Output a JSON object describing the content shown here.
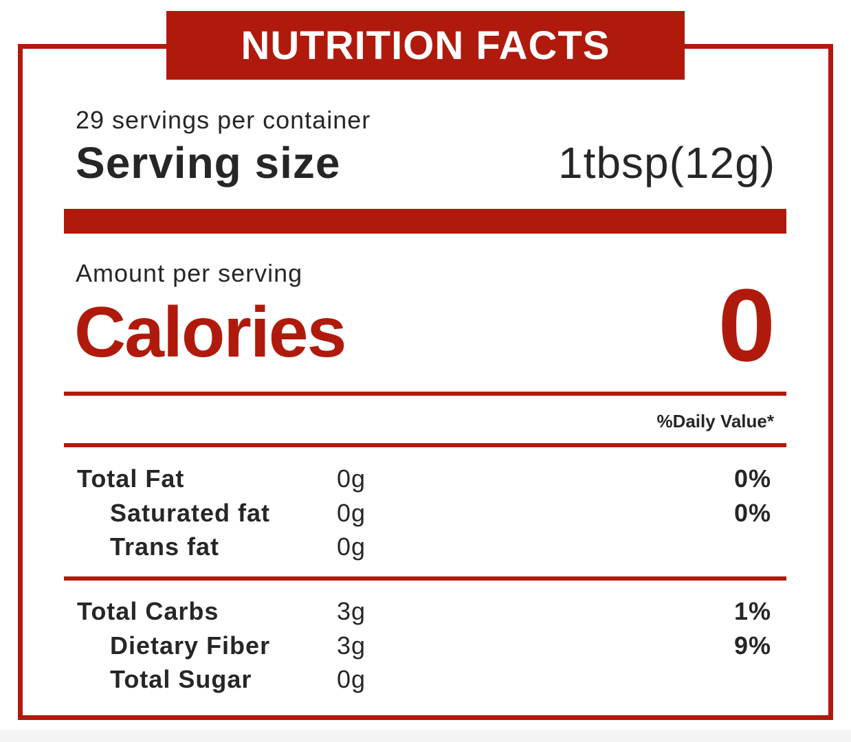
{
  "header": {
    "title": "NUTRITION FACTS"
  },
  "serving": {
    "servings_per_container": "29 servings per container",
    "size_label": "Serving size",
    "size_value": "1tbsp(12g)"
  },
  "calories": {
    "amount_label": "Amount per serving",
    "label": "Calories",
    "value": "0"
  },
  "daily_value_header": "%Daily Value*",
  "fat_section": [
    {
      "label": "Total Fat",
      "amount": "0g",
      "daily_value": "0%"
    },
    {
      "label": "Saturated fat",
      "amount": "0g",
      "daily_value": "0%"
    },
    {
      "label": "Trans fat",
      "amount": "0g",
      "daily_value": ""
    }
  ],
  "carb_section": [
    {
      "label": "Total Carbs",
      "amount": "3g",
      "daily_value": "1%"
    },
    {
      "label": "Dietary Fiber",
      "amount": "3g",
      "daily_value": "9%"
    },
    {
      "label": "Total Sugar",
      "amount": "0g",
      "daily_value": ""
    }
  ],
  "colors": {
    "accent": "#b01a0c",
    "text": "#262626",
    "background": "#ffffff"
  }
}
